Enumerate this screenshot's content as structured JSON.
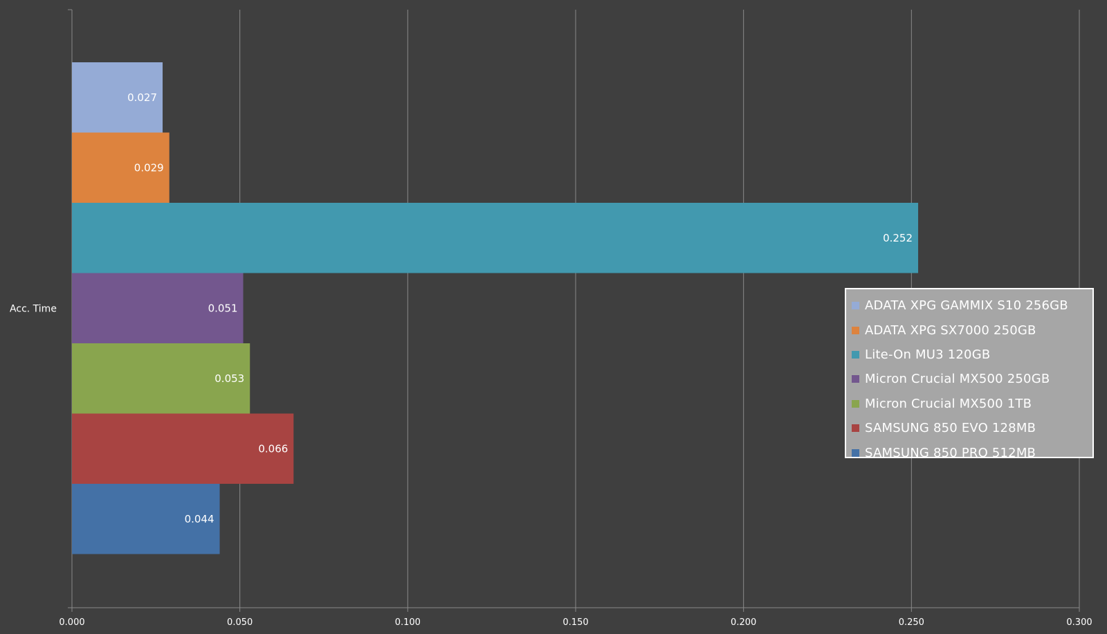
{
  "chart_data": {
    "type": "bar",
    "orientation": "horizontal",
    "categories": [
      "Acc. Time"
    ],
    "series": [
      {
        "name": "ADATA XPG GAMMIX S10 256GB",
        "values": [
          0.027
        ],
        "color": "#95abd6",
        "label": "0.027"
      },
      {
        "name": "ADATA XPG SX7000 250GB",
        "values": [
          0.029
        ],
        "color": "#dd833e",
        "label": "0.029"
      },
      {
        "name": "Lite-On MU3 120GB",
        "values": [
          0.252
        ],
        "color": "#4299af",
        "label": "0.252"
      },
      {
        "name": "Micron Crucial MX500 250GB",
        "values": [
          0.051
        ],
        "color": "#73578e",
        "label": "0.051"
      },
      {
        "name": "Micron Crucial MX500 1TB",
        "values": [
          0.053
        ],
        "color": "#89a54e",
        "label": "0.053"
      },
      {
        "name": "SAMSUNG 850 EVO 128MB",
        "values": [
          0.066
        ],
        "color": "#a84442",
        "label": "0.066"
      },
      {
        "name": "SAMSUNG 850 PRO 512MB",
        "values": [
          0.044
        ],
        "color": "#4471a6",
        "label": "0.044"
      }
    ],
    "xlim": [
      0,
      0.3
    ],
    "x_ticks": [
      "0.000",
      "0.050",
      "0.100",
      "0.150",
      "0.200",
      "0.250",
      "0.300"
    ],
    "grid": true,
    "legend_position": "right",
    "title": "",
    "xlabel": "",
    "ylabel": "",
    "background_color": "#3f3f3f",
    "gridline_color": "#8a8a8a"
  }
}
